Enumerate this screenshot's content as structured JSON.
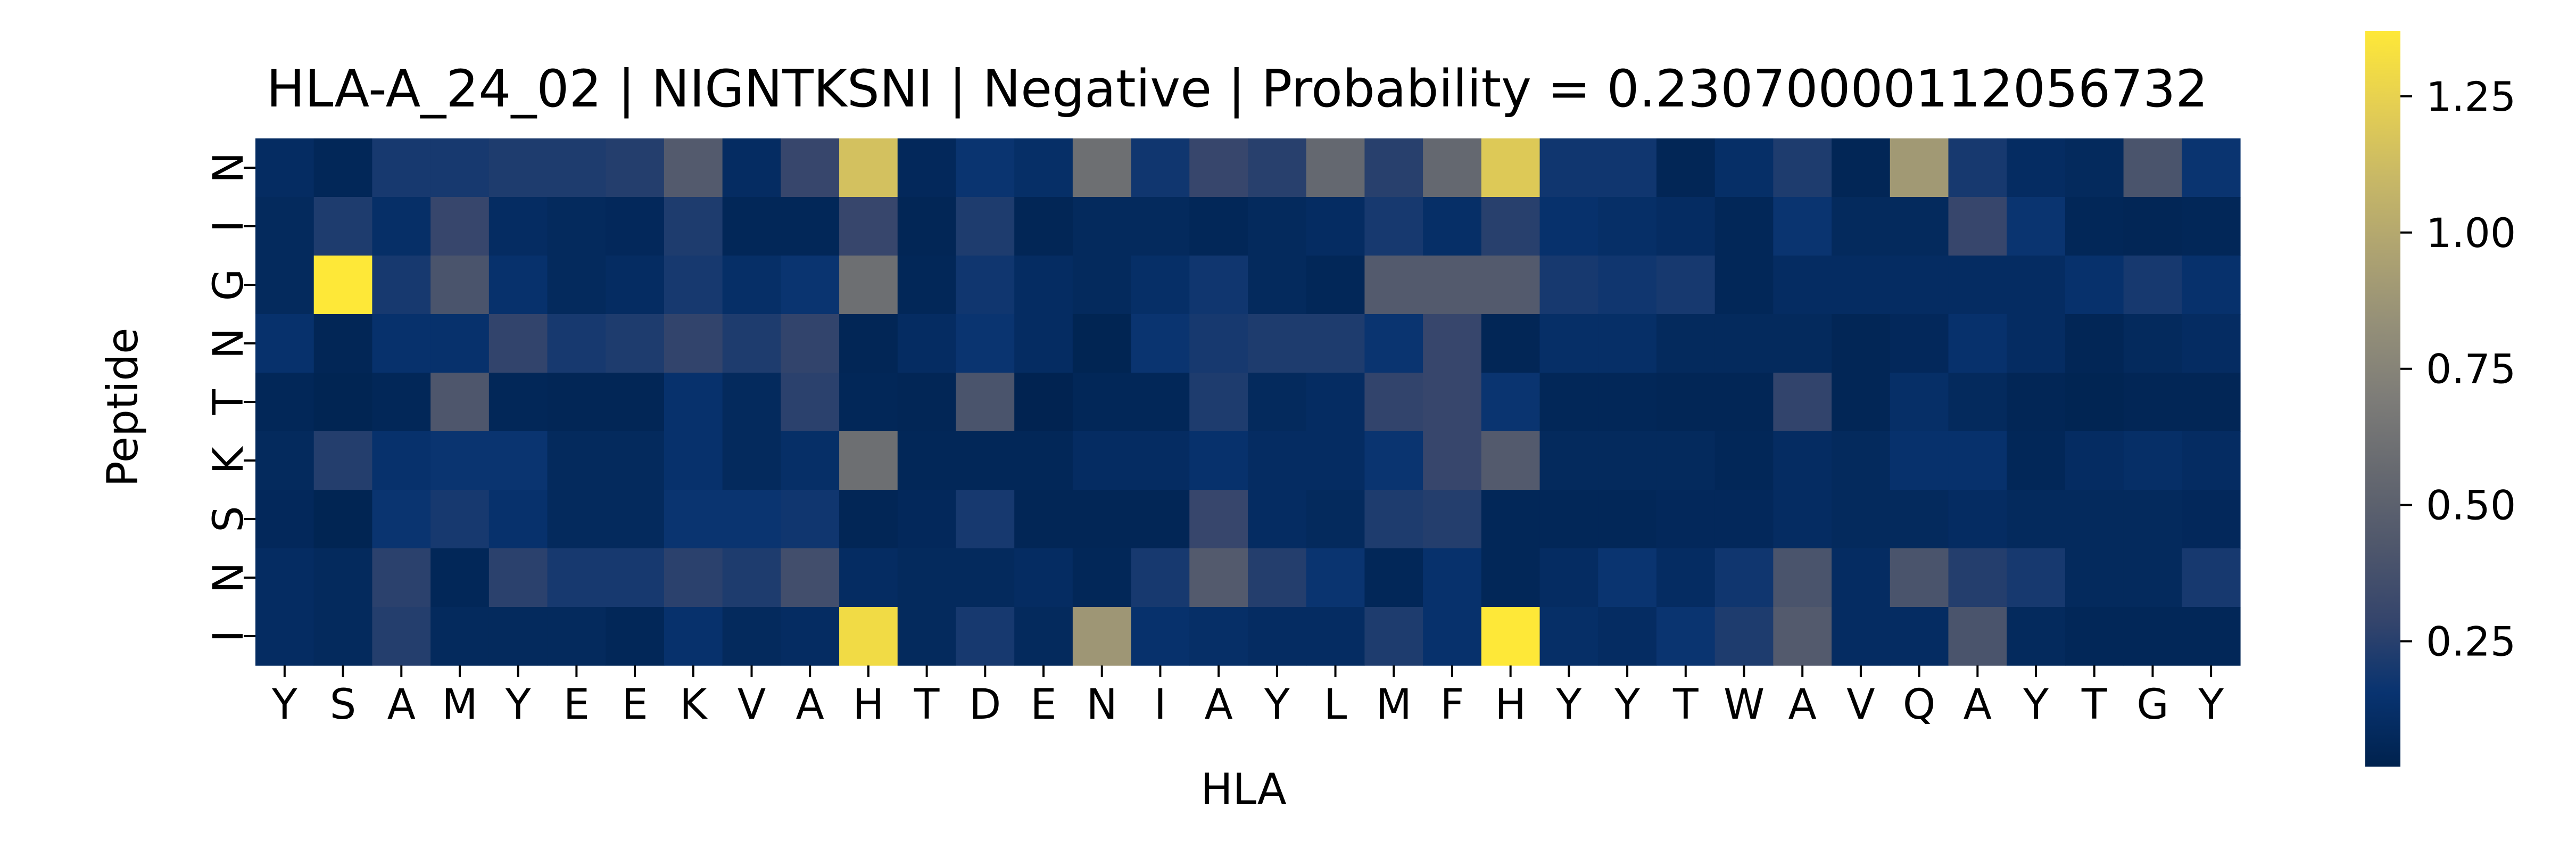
{
  "chart_data": {
    "type": "heatmap",
    "title": "HLA-A_24_02 | NIGNTKSNI | Negative | Probability = 0.23070000112056732",
    "xlabel": "HLA",
    "ylabel": "Peptide",
    "x_tick_labels": [
      "Y",
      "S",
      "A",
      "M",
      "Y",
      "E",
      "E",
      "K",
      "V",
      "A",
      "H",
      "T",
      "D",
      "E",
      "N",
      "I",
      "A",
      "Y",
      "L",
      "M",
      "F",
      "H",
      "Y",
      "Y",
      "T",
      "W",
      "A",
      "V",
      "Q",
      "A",
      "Y",
      "T",
      "G",
      "Y"
    ],
    "y_tick_labels": [
      "N",
      "I",
      "G",
      "N",
      "T",
      "K",
      "S",
      "N",
      "I"
    ],
    "colormap": "cividis",
    "colorbar": {
      "range": [
        0.02,
        1.37
      ],
      "ticks": [
        0.25,
        0.5,
        0.75,
        1.0,
        1.25
      ],
      "tick_labels": [
        "0.25",
        "0.50",
        "0.75",
        "1.00",
        "1.25"
      ]
    },
    "values": [
      [
        0.1,
        0.06,
        0.2,
        0.2,
        0.22,
        0.22,
        0.24,
        0.45,
        0.1,
        0.3,
        1.15,
        0.07,
        0.16,
        0.12,
        0.6,
        0.18,
        0.3,
        0.25,
        0.55,
        0.25,
        0.55,
        1.2,
        0.18,
        0.18,
        0.05,
        0.12,
        0.22,
        0.05,
        0.9,
        0.2,
        0.1,
        0.08,
        0.4,
        0.16
      ],
      [
        0.08,
        0.22,
        0.12,
        0.3,
        0.1,
        0.08,
        0.07,
        0.22,
        0.06,
        0.06,
        0.3,
        0.05,
        0.22,
        0.05,
        0.08,
        0.08,
        0.06,
        0.08,
        0.1,
        0.2,
        0.12,
        0.25,
        0.14,
        0.12,
        0.1,
        0.06,
        0.16,
        0.08,
        0.08,
        0.3,
        0.16,
        0.06,
        0.05,
        0.06
      ],
      [
        0.08,
        1.37,
        0.2,
        0.4,
        0.14,
        0.08,
        0.1,
        0.2,
        0.12,
        0.16,
        0.6,
        0.06,
        0.18,
        0.1,
        0.08,
        0.12,
        0.18,
        0.08,
        0.06,
        0.45,
        0.45,
        0.45,
        0.2,
        0.18,
        0.2,
        0.06,
        0.1,
        0.1,
        0.1,
        0.1,
        0.1,
        0.14,
        0.2,
        0.14
      ],
      [
        0.14,
        0.05,
        0.14,
        0.14,
        0.28,
        0.2,
        0.22,
        0.28,
        0.22,
        0.28,
        0.05,
        0.1,
        0.16,
        0.1,
        0.04,
        0.16,
        0.2,
        0.22,
        0.22,
        0.16,
        0.3,
        0.05,
        0.12,
        0.12,
        0.08,
        0.08,
        0.08,
        0.05,
        0.07,
        0.14,
        0.1,
        0.05,
        0.08,
        0.1
      ],
      [
        0.06,
        0.04,
        0.06,
        0.42,
        0.06,
        0.05,
        0.05,
        0.14,
        0.08,
        0.26,
        0.06,
        0.05,
        0.4,
        0.03,
        0.06,
        0.06,
        0.22,
        0.08,
        0.1,
        0.28,
        0.3,
        0.16,
        0.06,
        0.06,
        0.05,
        0.05,
        0.28,
        0.05,
        0.12,
        0.08,
        0.05,
        0.04,
        0.05,
        0.05
      ],
      [
        0.08,
        0.24,
        0.14,
        0.16,
        0.16,
        0.08,
        0.08,
        0.14,
        0.08,
        0.12,
        0.6,
        0.06,
        0.06,
        0.06,
        0.1,
        0.1,
        0.14,
        0.1,
        0.1,
        0.16,
        0.3,
        0.45,
        0.08,
        0.08,
        0.08,
        0.06,
        0.1,
        0.08,
        0.14,
        0.14,
        0.06,
        0.1,
        0.12,
        0.1
      ],
      [
        0.07,
        0.04,
        0.16,
        0.2,
        0.14,
        0.08,
        0.08,
        0.16,
        0.16,
        0.18,
        0.05,
        0.07,
        0.2,
        0.05,
        0.05,
        0.05,
        0.3,
        0.1,
        0.08,
        0.22,
        0.24,
        0.06,
        0.06,
        0.06,
        0.07,
        0.07,
        0.1,
        0.08,
        0.08,
        0.1,
        0.08,
        0.08,
        0.08,
        0.07
      ],
      [
        0.1,
        0.08,
        0.26,
        0.06,
        0.26,
        0.2,
        0.2,
        0.26,
        0.22,
        0.36,
        0.1,
        0.08,
        0.08,
        0.1,
        0.06,
        0.2,
        0.45,
        0.24,
        0.16,
        0.06,
        0.14,
        0.06,
        0.1,
        0.16,
        0.1,
        0.18,
        0.4,
        0.1,
        0.4,
        0.24,
        0.2,
        0.08,
        0.08,
        0.2
      ],
      [
        0.1,
        0.08,
        0.24,
        0.08,
        0.08,
        0.08,
        0.06,
        0.14,
        0.08,
        0.1,
        1.3,
        0.08,
        0.2,
        0.08,
        0.88,
        0.14,
        0.12,
        0.1,
        0.1,
        0.22,
        0.14,
        1.37,
        0.12,
        0.1,
        0.16,
        0.22,
        0.45,
        0.1,
        0.1,
        0.4,
        0.08,
        0.06,
        0.06,
        0.06
      ]
    ]
  }
}
